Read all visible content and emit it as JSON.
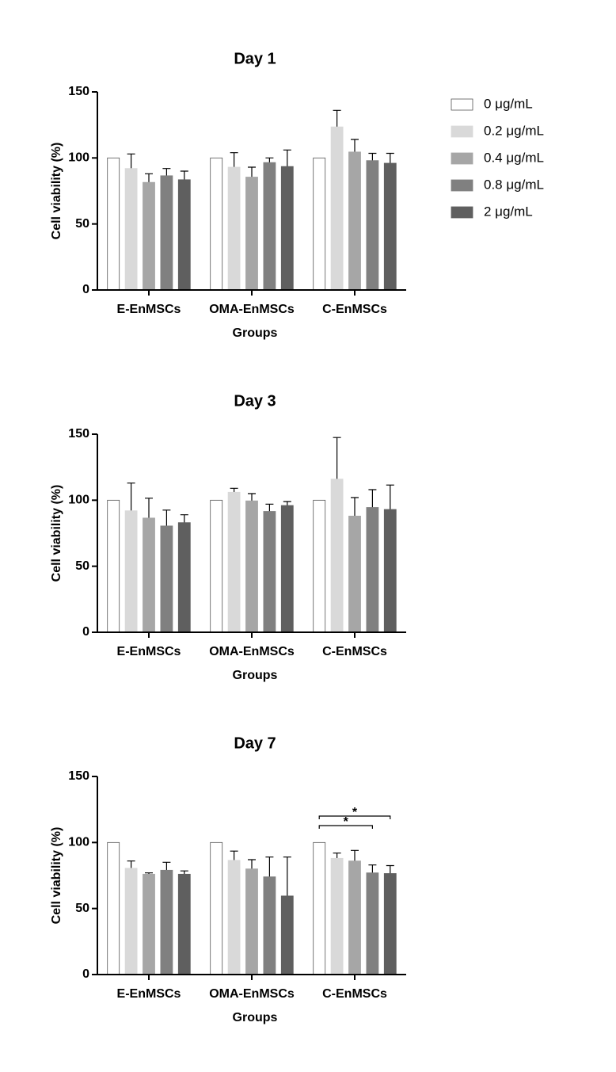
{
  "chart_data": [
    {
      "type": "bar",
      "title": "Day 1",
      "xlabel": "Groups",
      "ylabel": "Cell viability (%)",
      "categories": [
        "E-EnMSCs",
        "OMA-EnMSCs",
        "C-EnMSCs"
      ],
      "ylim": [
        0,
        150
      ],
      "yticks": [
        0,
        50,
        100,
        150
      ],
      "series": [
        {
          "name": "0 μg/mL",
          "color": "#ffffff",
          "values": [
            100,
            100,
            100
          ],
          "errors": [
            null,
            null,
            null
          ]
        },
        {
          "name": "0.2 μg/mL",
          "color": "#d9d9d9",
          "values": [
            92,
            93,
            123.5
          ],
          "errors": [
            11,
            11,
            12.5
          ]
        },
        {
          "name": "0.4 μg/mL",
          "color": "#a6a6a6",
          "values": [
            81.5,
            85.5,
            104.5
          ],
          "errors": [
            6.5,
            7.5,
            9.5
          ]
        },
        {
          "name": "0.8 μg/mL",
          "color": "#808080",
          "values": [
            86.5,
            96.5,
            98
          ],
          "errors": [
            5.5,
            3.5,
            5.5
          ]
        },
        {
          "name": "2 μg/mL",
          "color": "#5f5f5f",
          "values": [
            83.5,
            93.5,
            96
          ],
          "errors": [
            6.5,
            12.5,
            7.5
          ]
        }
      ]
    },
    {
      "type": "bar",
      "title": "Day 3",
      "xlabel": "Groups",
      "ylabel": "Cell viability (%)",
      "categories": [
        "E-EnMSCs",
        "OMA-EnMSCs",
        "C-EnMSCs"
      ],
      "ylim": [
        0,
        150
      ],
      "yticks": [
        0,
        50,
        100,
        150
      ],
      "series": [
        {
          "color": "#ffffff",
          "values": [
            100,
            100,
            100
          ],
          "errors": [
            null,
            null,
            null
          ]
        },
        {
          "color": "#d9d9d9",
          "values": [
            92,
            106,
            116
          ],
          "errors": [
            21,
            3,
            31.5
          ]
        },
        {
          "color": "#a6a6a6",
          "values": [
            86.5,
            99.5,
            88
          ],
          "errors": [
            15,
            5.5,
            14
          ]
        },
        {
          "color": "#808080",
          "values": [
            80.5,
            91.5,
            94.5
          ],
          "errors": [
            12,
            5.5,
            13.5
          ]
        },
        {
          "color": "#5f5f5f",
          "values": [
            83,
            96,
            93
          ],
          "errors": [
            6,
            3,
            18.5
          ]
        }
      ]
    },
    {
      "type": "bar",
      "title": "Day 7",
      "xlabel": "Groups",
      "ylabel": "Cell viability (%)",
      "categories": [
        "E-EnMSCs",
        "OMA-EnMSCs",
        "C-EnMSCs"
      ],
      "ylim": [
        0,
        150
      ],
      "yticks": [
        0,
        50,
        100,
        150
      ],
      "series": [
        {
          "color": "#ffffff",
          "values": [
            100,
            100,
            100
          ],
          "errors": [
            null,
            null,
            null
          ]
        },
        {
          "color": "#d9d9d9",
          "values": [
            80.5,
            86.5,
            88
          ],
          "errors": [
            5.5,
            7,
            4
          ]
        },
        {
          "color": "#a6a6a6",
          "values": [
            76,
            80,
            86
          ],
          "errors": [
            1,
            7,
            8
          ]
        },
        {
          "color": "#808080",
          "values": [
            79,
            74,
            77
          ],
          "errors": [
            6,
            15,
            6
          ]
        },
        {
          "color": "#5f5f5f",
          "values": [
            76,
            59.5,
            76.5
          ],
          "errors": [
            2.5,
            29.5,
            6
          ]
        }
      ],
      "annotations": [
        {
          "text": "*",
          "category": 2,
          "series": [
            0,
            3
          ]
        },
        {
          "text": "*",
          "category": 2,
          "series": [
            0,
            4
          ]
        }
      ]
    }
  ]
}
